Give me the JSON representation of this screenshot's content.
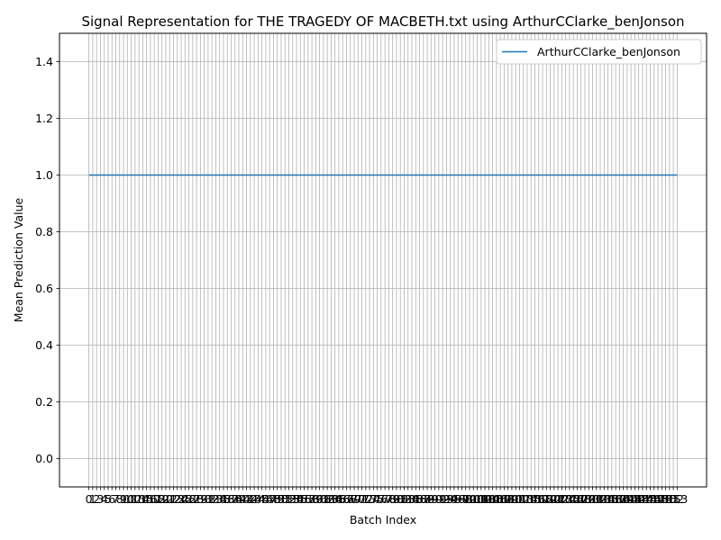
{
  "chart_data": {
    "type": "line",
    "title": "Signal Representation for THE TRAGEDY OF MACBETH.txt using ArthurCClarke_benJonson",
    "xlabel": "Batch Index",
    "ylabel": "Mean Prediction Value",
    "x_range": [
      0,
      153
    ],
    "xlim": [
      -7.65,
      160.65
    ],
    "ylim": [
      -0.1,
      1.5
    ],
    "y_ticks": [
      0.0,
      0.2,
      0.4,
      0.6,
      0.8,
      1.0,
      1.2,
      1.4
    ],
    "x_tick_step": 1,
    "grid": true,
    "legend_position": "upper-right",
    "series": [
      {
        "name": "ArthurCClarke_benJonson",
        "color": "#1f77b4",
        "constant_value": 1.0
      }
    ]
  }
}
